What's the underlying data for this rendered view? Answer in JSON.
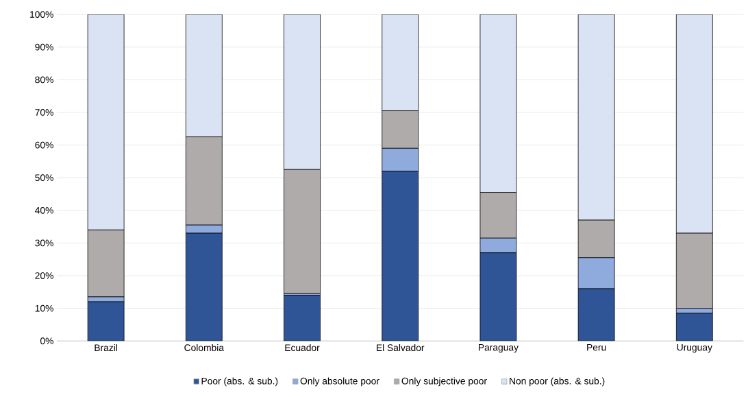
{
  "chart_data": {
    "type": "bar",
    "stacked": true,
    "categories": [
      "Brazil",
      "Colombia",
      "Ecuador",
      "El Salvador",
      "Paraguay",
      "Peru",
      "Uruguay"
    ],
    "series": [
      {
        "name": "Poor (abs. & sub.)",
        "color": "#2f5597",
        "values": [
          12,
          33,
          14,
          52,
          27,
          16,
          8.5
        ]
      },
      {
        "name": "Only absolute poor",
        "color": "#8faadc",
        "values": [
          1.5,
          2.5,
          0.5,
          7,
          4.5,
          9.5,
          1.5
        ]
      },
      {
        "name": "Only subjective poor",
        "color": "#afabab",
        "values": [
          20.5,
          27,
          38,
          11.5,
          14,
          11.5,
          23
        ]
      },
      {
        "name": "Non poor (abs. & sub.)",
        "color": "#dae3f3",
        "values": [
          66,
          37.5,
          47.5,
          29.5,
          54.5,
          63,
          67
        ]
      }
    ],
    "ylim": [
      0,
      100
    ],
    "yticks": [
      {
        "value": 0,
        "label": "0%"
      },
      {
        "value": 10,
        "label": "10%"
      },
      {
        "value": 20,
        "label": "20%"
      },
      {
        "value": 30,
        "label": "30%"
      },
      {
        "value": 40,
        "label": "40%"
      },
      {
        "value": 50,
        "label": "50%"
      },
      {
        "value": 60,
        "label": "60%"
      },
      {
        "value": 70,
        "label": "70%"
      },
      {
        "value": 80,
        "label": "80%"
      },
      {
        "value": 90,
        "label": "90%"
      },
      {
        "value": 100,
        "label": "100%"
      }
    ],
    "grid": "y",
    "legend": "bottom"
  }
}
